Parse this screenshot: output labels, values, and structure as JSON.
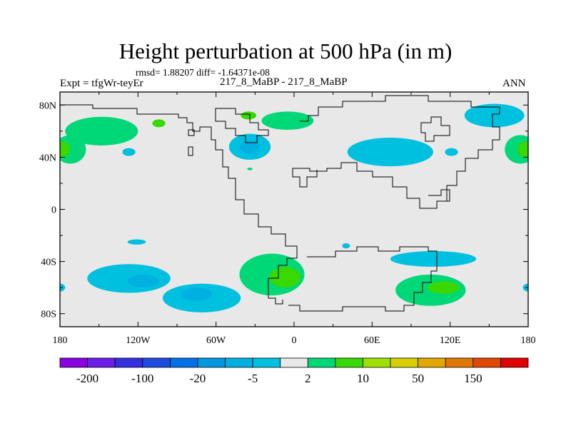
{
  "chart_data": {
    "type": "heatmap",
    "title": "Height perturbation at 500 hPa (in m)",
    "stats": "rmsd= 1.88207 diff= -1.64371e-08",
    "left_label": "Expt = tfgWr-teyEr",
    "center_label": "217_8_MaBP - 217_8_MaBP",
    "right_label": "ANN",
    "lon_range": [
      -180,
      180
    ],
    "lat_range": [
      -90,
      90
    ],
    "x_ticks": [
      {
        "value": -180,
        "label": "180"
      },
      {
        "value": -120,
        "label": "120W"
      },
      {
        "value": -60,
        "label": "60W"
      },
      {
        "value": 0,
        "label": "0"
      },
      {
        "value": 60,
        "label": "60E"
      },
      {
        "value": 120,
        "label": "120E"
      },
      {
        "value": 180,
        "label": "180"
      }
    ],
    "y_ticks": [
      {
        "value": 80,
        "label": "80N"
      },
      {
        "value": 40,
        "label": "40N"
      },
      {
        "value": 0,
        "label": "0"
      },
      {
        "value": -40,
        "label": "40S"
      },
      {
        "value": -80,
        "label": "80S"
      }
    ],
    "colorbar": {
      "colors": [
        "#8a00e0",
        "#6a1ee8",
        "#3430e0",
        "#1e4ae0",
        "#0070e8",
        "#0098e0",
        "#00b0e0",
        "#00c0e0",
        "#e8e8e8",
        "#00d878",
        "#38d800",
        "#a0e000",
        "#d8d000",
        "#e0a800",
        "#e07800",
        "#e04800",
        "#e00000"
      ],
      "labels": [
        "-200",
        "-100",
        "-20",
        "-5",
        "2",
        "10",
        "50",
        "150"
      ]
    },
    "anomaly_regions": [
      {
        "name": "n-atlantic-pos",
        "lon": -148,
        "lat": 60,
        "rx": 28,
        "ry": 11,
        "color": "#00d878"
      },
      {
        "name": "n-atlantic-pos-core",
        "lon": -104,
        "lat": 66,
        "rx": 5,
        "ry": 3,
        "color": "#38d800"
      },
      {
        "name": "europe-pos-arc",
        "lon": -5,
        "lat": 68,
        "rx": 20,
        "ry": 7,
        "color": "#00d878"
      },
      {
        "name": "central-pos",
        "lon": -35,
        "lat": 72,
        "rx": 6,
        "ry": 3,
        "color": "#38d800"
      },
      {
        "name": "atlantic-neg",
        "lon": -34,
        "lat": 48,
        "rx": 16,
        "ry": 10,
        "color": "#00c0e0"
      },
      {
        "name": "atlantic-neg-core",
        "lon": -34,
        "lat": 48,
        "rx": 8,
        "ry": 5,
        "color": "#00b0e0"
      },
      {
        "name": "west-neg-blob",
        "lon": -127,
        "lat": 44,
        "rx": 5,
        "ry": 3,
        "color": "#00c0e0"
      },
      {
        "name": "small-pos",
        "lon": -34,
        "lat": 31,
        "rx": 2,
        "ry": 1,
        "color": "#00d878"
      },
      {
        "name": "asia-neg",
        "lon": 74,
        "lat": 44,
        "rx": 33,
        "ry": 11,
        "color": "#00c0e0"
      },
      {
        "name": "nw-pacific-neg",
        "lon": 154,
        "lat": 72,
        "rx": 23,
        "ry": 9,
        "color": "#00c0e0"
      },
      {
        "name": "pacific-pos-east",
        "lon": 174,
        "lat": 46,
        "rx": 12,
        "ry": 11,
        "color": "#00d878"
      },
      {
        "name": "pacific-pos-east-core",
        "lon": 178,
        "lat": 46,
        "rx": 6,
        "ry": 6,
        "color": "#38d800"
      },
      {
        "name": "pacific-pos-west",
        "lon": -172,
        "lat": 46,
        "rx": 12,
        "ry": 11,
        "color": "#00d878"
      },
      {
        "name": "pacific-pos-west-core",
        "lon": -178,
        "lat": 46,
        "rx": 6,
        "ry": 6,
        "color": "#38d800"
      },
      {
        "name": "sp-small-neg",
        "lon": 121,
        "lat": 44,
        "rx": 5,
        "ry": 3,
        "color": "#00c0e0"
      },
      {
        "name": "sh-pos-center",
        "lon": -17,
        "lat": -50,
        "rx": 25,
        "ry": 16,
        "color": "#00d878"
      },
      {
        "name": "sh-pos-center-core",
        "lon": -7,
        "lat": -52,
        "rx": 12,
        "ry": 8,
        "color": "#38d800"
      },
      {
        "name": "sh-neg-pacific",
        "lon": -127,
        "lat": -53,
        "rx": 32,
        "ry": 11,
        "color": "#00c0e0"
      },
      {
        "name": "sh-neg-pacific-core",
        "lon": -116,
        "lat": -55,
        "rx": 12,
        "ry": 5,
        "color": "#00b0e0"
      },
      {
        "name": "sh-neg-south",
        "lon": -71,
        "lat": -68,
        "rx": 30,
        "ry": 11,
        "color": "#00c0e0"
      },
      {
        "name": "sh-neg-south-core",
        "lon": -75,
        "lat": -65,
        "rx": 12,
        "ry": 5,
        "color": "#00b0e0"
      },
      {
        "name": "sh-neg-small",
        "lon": -121,
        "lat": -25,
        "rx": 7,
        "ry": 2,
        "color": "#00c0e0"
      },
      {
        "name": "indian-neg",
        "lon": 107,
        "lat": -38,
        "rx": 33,
        "ry": 6,
        "color": "#00c0e0"
      },
      {
        "name": "indian-pos",
        "lon": 105,
        "lat": -62,
        "rx": 27,
        "ry": 12,
        "color": "#00d878"
      },
      {
        "name": "indian-pos-core",
        "lon": 115,
        "lat": -60,
        "rx": 12,
        "ry": 5,
        "color": "#38d800"
      },
      {
        "name": "small-neg-atl",
        "lon": 40,
        "lat": -28,
        "rx": 3,
        "ry": 2,
        "color": "#00c0e0"
      },
      {
        "name": "edge-neg-east",
        "lon": 180,
        "lat": -60,
        "rx": 4,
        "ry": 3,
        "color": "#00c0e0"
      },
      {
        "name": "edge-neg-west",
        "lon": -180,
        "lat": -60,
        "rx": 4,
        "ry": 3,
        "color": "#00c0e0"
      }
    ]
  }
}
